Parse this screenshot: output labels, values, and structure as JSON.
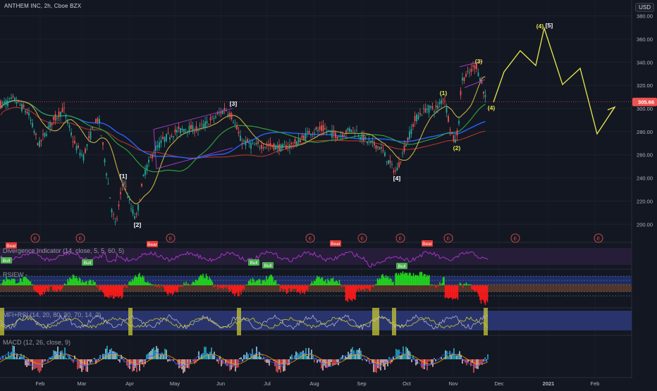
{
  "header": {
    "symbol": "ANTHEM INC, 2h, Cboe BZX",
    "currency": "USD"
  },
  "price_axis": {
    "ticks": [
      "380.00",
      "360.00",
      "340.00",
      "320.00",
      "300.00",
      "280.00",
      "260.00",
      "240.00",
      "220.00",
      "200.00"
    ],
    "current_price": "305.66"
  },
  "time_axis": {
    "ticks": [
      "Feb",
      "Mar",
      "Apr",
      "May",
      "Jun",
      "Jul",
      "Aug",
      "Sep",
      "Oct",
      "Nov",
      "Dec",
      "2021",
      "Feb"
    ]
  },
  "wave_labels": [
    "[1]",
    "[2]",
    "[3]",
    "[4]",
    "(1)",
    "(2)",
    "(3)",
    "(4)",
    "(4)",
    "[5]"
  ],
  "event_markers": [
    "E",
    "E",
    "E",
    "E",
    "E",
    "E",
    "E",
    "E",
    "E"
  ],
  "divergence_panel": {
    "title": "Divergence Indicator (14, close, 5, 5, 60, 5)",
    "axis": [
      "40.00"
    ],
    "tags": [
      "Bull",
      "Bull",
      "Bull",
      "Bull",
      "Bull",
      "Bear",
      "Bear",
      "Bear",
      "Bear"
    ]
  },
  "rsi_panel": {
    "title": "RSIEW -",
    "axis": [
      "60.00",
      "40.00"
    ]
  },
  "mfi_panel": {
    "title": "MFI+RSI (14, 20, 80, 30, 70, 14, 2)",
    "axis": [
      "80",
      "40"
    ]
  },
  "macd_panel": {
    "title": "MACD (12, 26, close, 9)",
    "axis": [
      "0.50",
      "0.00",
      "-0.50"
    ]
  },
  "colors": {
    "background": "#131722",
    "up": "#26a69a",
    "down": "#ef5350",
    "projection": "#e8e84a",
    "channel": "#b13ad6",
    "ma_green": "#2e9e3a",
    "ma_blue": "#2962ff",
    "ma_red": "#c0392b",
    "ma_yellow": "#c8b040",
    "rsi_green": "#22d81c",
    "rsi_red": "#ff1a1a",
    "divergence_line": "#a435c8"
  }
}
